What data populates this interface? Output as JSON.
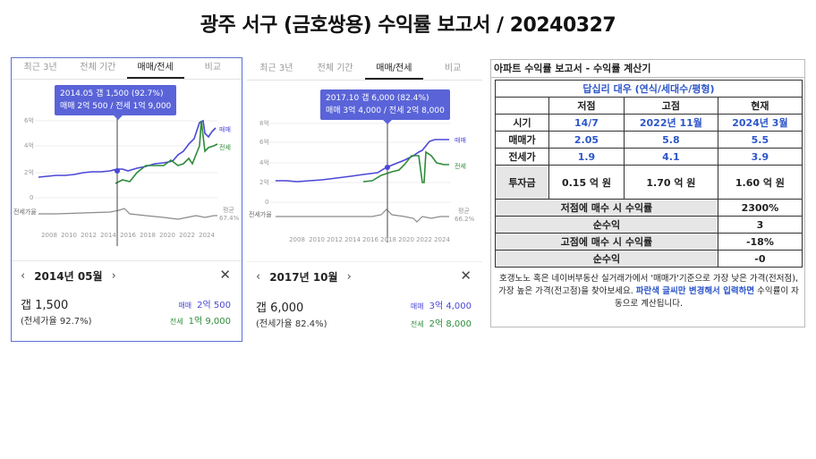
{
  "page": {
    "title": "광주 서구 (금호쌍용) 수익률 보고서 / 20240327"
  },
  "app1": {
    "tabs": [
      "최근 3년",
      "전체 기간",
      "매매/전세",
      "비교"
    ],
    "active_tab": "매매/전세",
    "tooltip_line1": "2014.05  갭 1,500 (92.7%)",
    "tooltip_line2": "매매 2억 500 / 전세 1억 9,000",
    "y_ticks": [
      "6억",
      "4억",
      "2억",
      "0"
    ],
    "x_ticks": [
      "2008",
      "2010",
      "2012",
      "2014",
      "2016",
      "2018",
      "2020",
      "2022",
      "2024"
    ],
    "legend_trade": "매매",
    "legend_jeonse": "전세",
    "ratio_axis_label": "전세가율",
    "avg_label": "평균",
    "avg_value": "67.4%",
    "detail": {
      "date": "2014년 05월",
      "gap": "갭 1,500",
      "ratio": "(전세가율 92.7%)",
      "trade_label": "매매",
      "trade_value": "2억 500",
      "jeonse_label": "전세",
      "jeonse_value": "1억 9,000"
    }
  },
  "app2": {
    "tabs": [
      "최근 3년",
      "전체 기간",
      "매매/전세",
      "비교"
    ],
    "active_tab": "매매/전세",
    "tooltip_line1": "2017.10  갭 6,000 (82.4%)",
    "tooltip_line2": "매매 3억 4,000 / 전세 2억 8,000",
    "y_ticks": [
      "8억",
      "6억",
      "4억",
      "2억",
      "0"
    ],
    "x_ticks": [
      "2008",
      "2010",
      "2012",
      "2014",
      "2016",
      "2018",
      "2020",
      "2022",
      "2024"
    ],
    "legend_trade": "매매",
    "legend_jeonse": "전세",
    "ratio_axis_label": "전세가율",
    "avg_label": "평균",
    "avg_value": "66.2%",
    "detail": {
      "date": "2017년 10월",
      "gap": "갭 6,000",
      "ratio": "(전세가율 82.4%)",
      "trade_label": "매매",
      "trade_value": "3억 4,000",
      "jeonse_label": "전세",
      "jeonse_value": "2억 8,000"
    }
  },
  "calculator": {
    "title": "아파트 수익률 보고서 - 수익률 계산기",
    "subtitle": "답십리 대우 (연식/세대수/평형)",
    "headers": [
      "",
      "저점",
      "고점",
      "현재"
    ],
    "rows": [
      {
        "label": "시기",
        "values": [
          "14/7",
          "2022년 11월",
          "2024년 3월"
        ]
      },
      {
        "label": "매매가",
        "values": [
          "2.05",
          "5.8",
          "5.5"
        ]
      },
      {
        "label": "전세가",
        "values": [
          "1.9",
          "4.1",
          "3.9"
        ]
      },
      {
        "label": "투자금",
        "values": [
          "0.15 억 원",
          "1.70 억 원",
          "1.60 억 원"
        ]
      }
    ],
    "results": [
      {
        "label": "저점에 매수 시 수익률",
        "value": "2300%"
      },
      {
        "label": "순수익",
        "value": "3"
      },
      {
        "label": "고점에 매수 시 수익률",
        "value": "-18%"
      },
      {
        "label": "순수익",
        "value": "-0"
      }
    ],
    "note_part1": "호갱노노 혹은 네이버부동산 실거래가에서 '매매가'기준으로 가장 낮은 가격(전저점), 가장 높은 가격(전고점)을 찾아보세요. ",
    "note_highlight": "파란색 글씨만 변경해서 입력하면",
    "note_part2": " 수익률이 자동으로 계산됩니다."
  },
  "colors": {
    "trade": "#4b47d8",
    "jeonse": "#2e8b3a",
    "ratio": "#8a8a8a",
    "accent": "#5a64d8",
    "calc_blue": "#2d56c8"
  }
}
